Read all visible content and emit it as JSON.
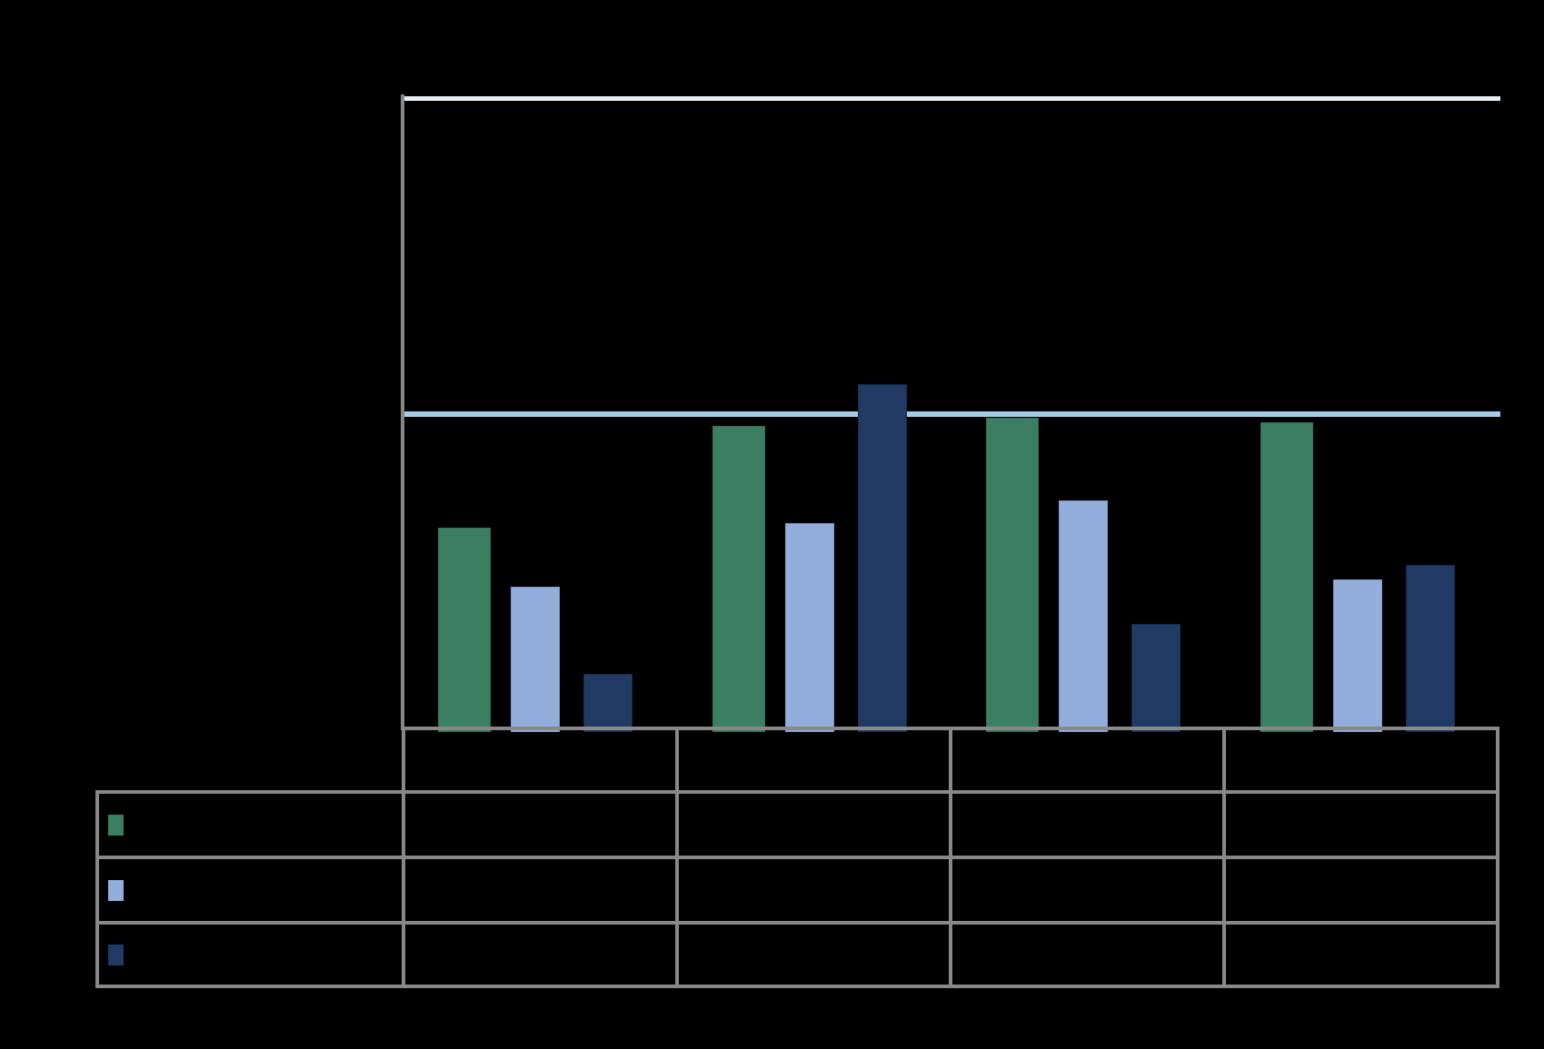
{
  "chart_data": {
    "type": "bar",
    "title": "",
    "xlabel": "",
    "ylabel": "",
    "categories": [
      "",
      "",
      "",
      ""
    ],
    "series": [
      {
        "name": "",
        "legend": "green",
        "color": "#3B7E62",
        "border": "#33705A",
        "values": [
          32.1,
          48.2,
          49.5,
          48.8
        ]
      },
      {
        "name": "",
        "legend": "light-blue",
        "color": "#94AEDC",
        "border": "#7F99C7",
        "values": [
          22.8,
          32.9,
          36.4,
          23.9
        ]
      },
      {
        "name": "",
        "legend": "dark-navy",
        "color": "#203A64",
        "border": "#182C4F",
        "values": [
          8.9,
          54.9,
          16.9,
          26.2
        ]
      }
    ],
    "ylim": [
      0,
      100
    ],
    "gridlines": [
      {
        "y": 100,
        "color": "#E9F0F8"
      },
      {
        "y": 50,
        "color": "#A5CCE9"
      }
    ],
    "legend_position": "table-left-column"
  },
  "table": {
    "header_cells": [
      "",
      "",
      "",
      ""
    ],
    "rows": [
      {
        "swatch_color": "#3B7E62",
        "cells": [
          "",
          "",
          "",
          ""
        ]
      },
      {
        "swatch_color": "#94AEDC",
        "cells": [
          "",
          "",
          "",
          ""
        ]
      },
      {
        "swatch_color": "#203A64",
        "cells": [
          "",
          "",
          "",
          ""
        ]
      }
    ]
  },
  "colors": {
    "background": "#000000",
    "axis_grey": "#888888",
    "gridline_top": "#E9F0F8",
    "reference_line": "#A5CCE9"
  }
}
